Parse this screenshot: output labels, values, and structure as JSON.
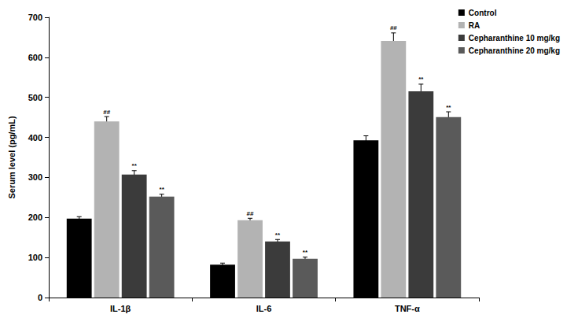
{
  "chart_data": {
    "type": "bar",
    "y_label": "Serum level (pg/mL)",
    "categories": [
      "IL-1β",
      "IL-6",
      "TNF-α"
    ],
    "series": [
      {
        "name": "Control",
        "color": "#000000",
        "values": [
          197,
          82,
          393
        ],
        "error": [
          5,
          4,
          11
        ]
      },
      {
        "name": "RA",
        "color": "#b3b3b3",
        "values": [
          440,
          193,
          641
        ],
        "error": [
          12,
          5,
          20
        ],
        "significance": [
          "##",
          "##",
          "##"
        ]
      },
      {
        "name": "Cepharanthine 10 mg/kg",
        "color": "#3b3b3b",
        "values": [
          307,
          140,
          515
        ],
        "error": [
          10,
          5,
          18
        ],
        "significance": [
          "**",
          "**",
          "**"
        ]
      },
      {
        "name": "Cepharanthine 20 mg/kg",
        "color": "#5a5a5a",
        "values": [
          252,
          97,
          451
        ],
        "error": [
          6,
          4,
          13
        ],
        "significance": [
          "**",
          "**",
          "**"
        ]
      }
    ],
    "ylim": [
      0,
      700
    ],
    "yticks": [
      0,
      100,
      200,
      300,
      400,
      500,
      600,
      700
    ],
    "grid": false,
    "legend": "top-right"
  }
}
